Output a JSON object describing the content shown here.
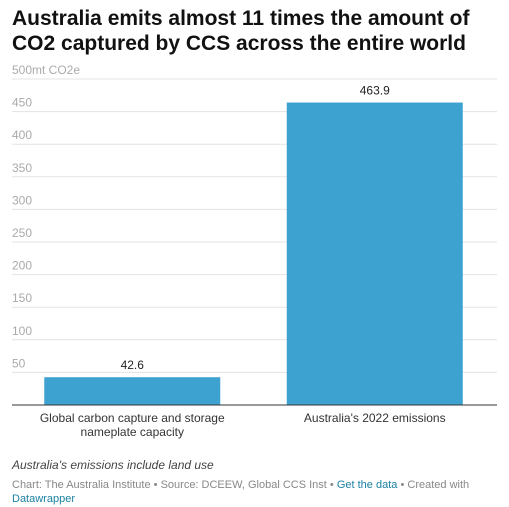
{
  "title": "Australia emits almost 11 times the amount of CO2 captured by CCS across the entire world",
  "note": "Australia's emissions include land use",
  "footer": {
    "chart_credit": "Chart: The Australia Institute",
    "separator": "•",
    "source": "Source: DCEEW, Global CCS Inst",
    "get_data": "Get the data",
    "created_with": "Created with",
    "tool": "Datawrapper"
  },
  "colors": {
    "bar": "#3da2cf",
    "grid": "#e3e3e3",
    "axis": "#333333",
    "tick": "#aaaaaa"
  },
  "chart_data": {
    "type": "bar",
    "title": "Australia emits almost 11 times the amount of CO2 captured by CCS across the entire world",
    "ylabel": "mt CO2e",
    "categories": [
      "Global carbon capture and storage nameplate capacity",
      "Australia's 2022 emissions"
    ],
    "values": [
      42.6,
      463.9
    ],
    "value_labels": [
      "42.6",
      "463.9"
    ],
    "ylim": [
      0,
      500
    ],
    "yticks": [
      50,
      100,
      150,
      200,
      250,
      300,
      350,
      400,
      450,
      500
    ],
    "ytick_labels": [
      "50",
      "100",
      "150",
      "200",
      "250",
      "300",
      "350",
      "400",
      "450",
      "500mt CO2e"
    ],
    "grid": true
  }
}
